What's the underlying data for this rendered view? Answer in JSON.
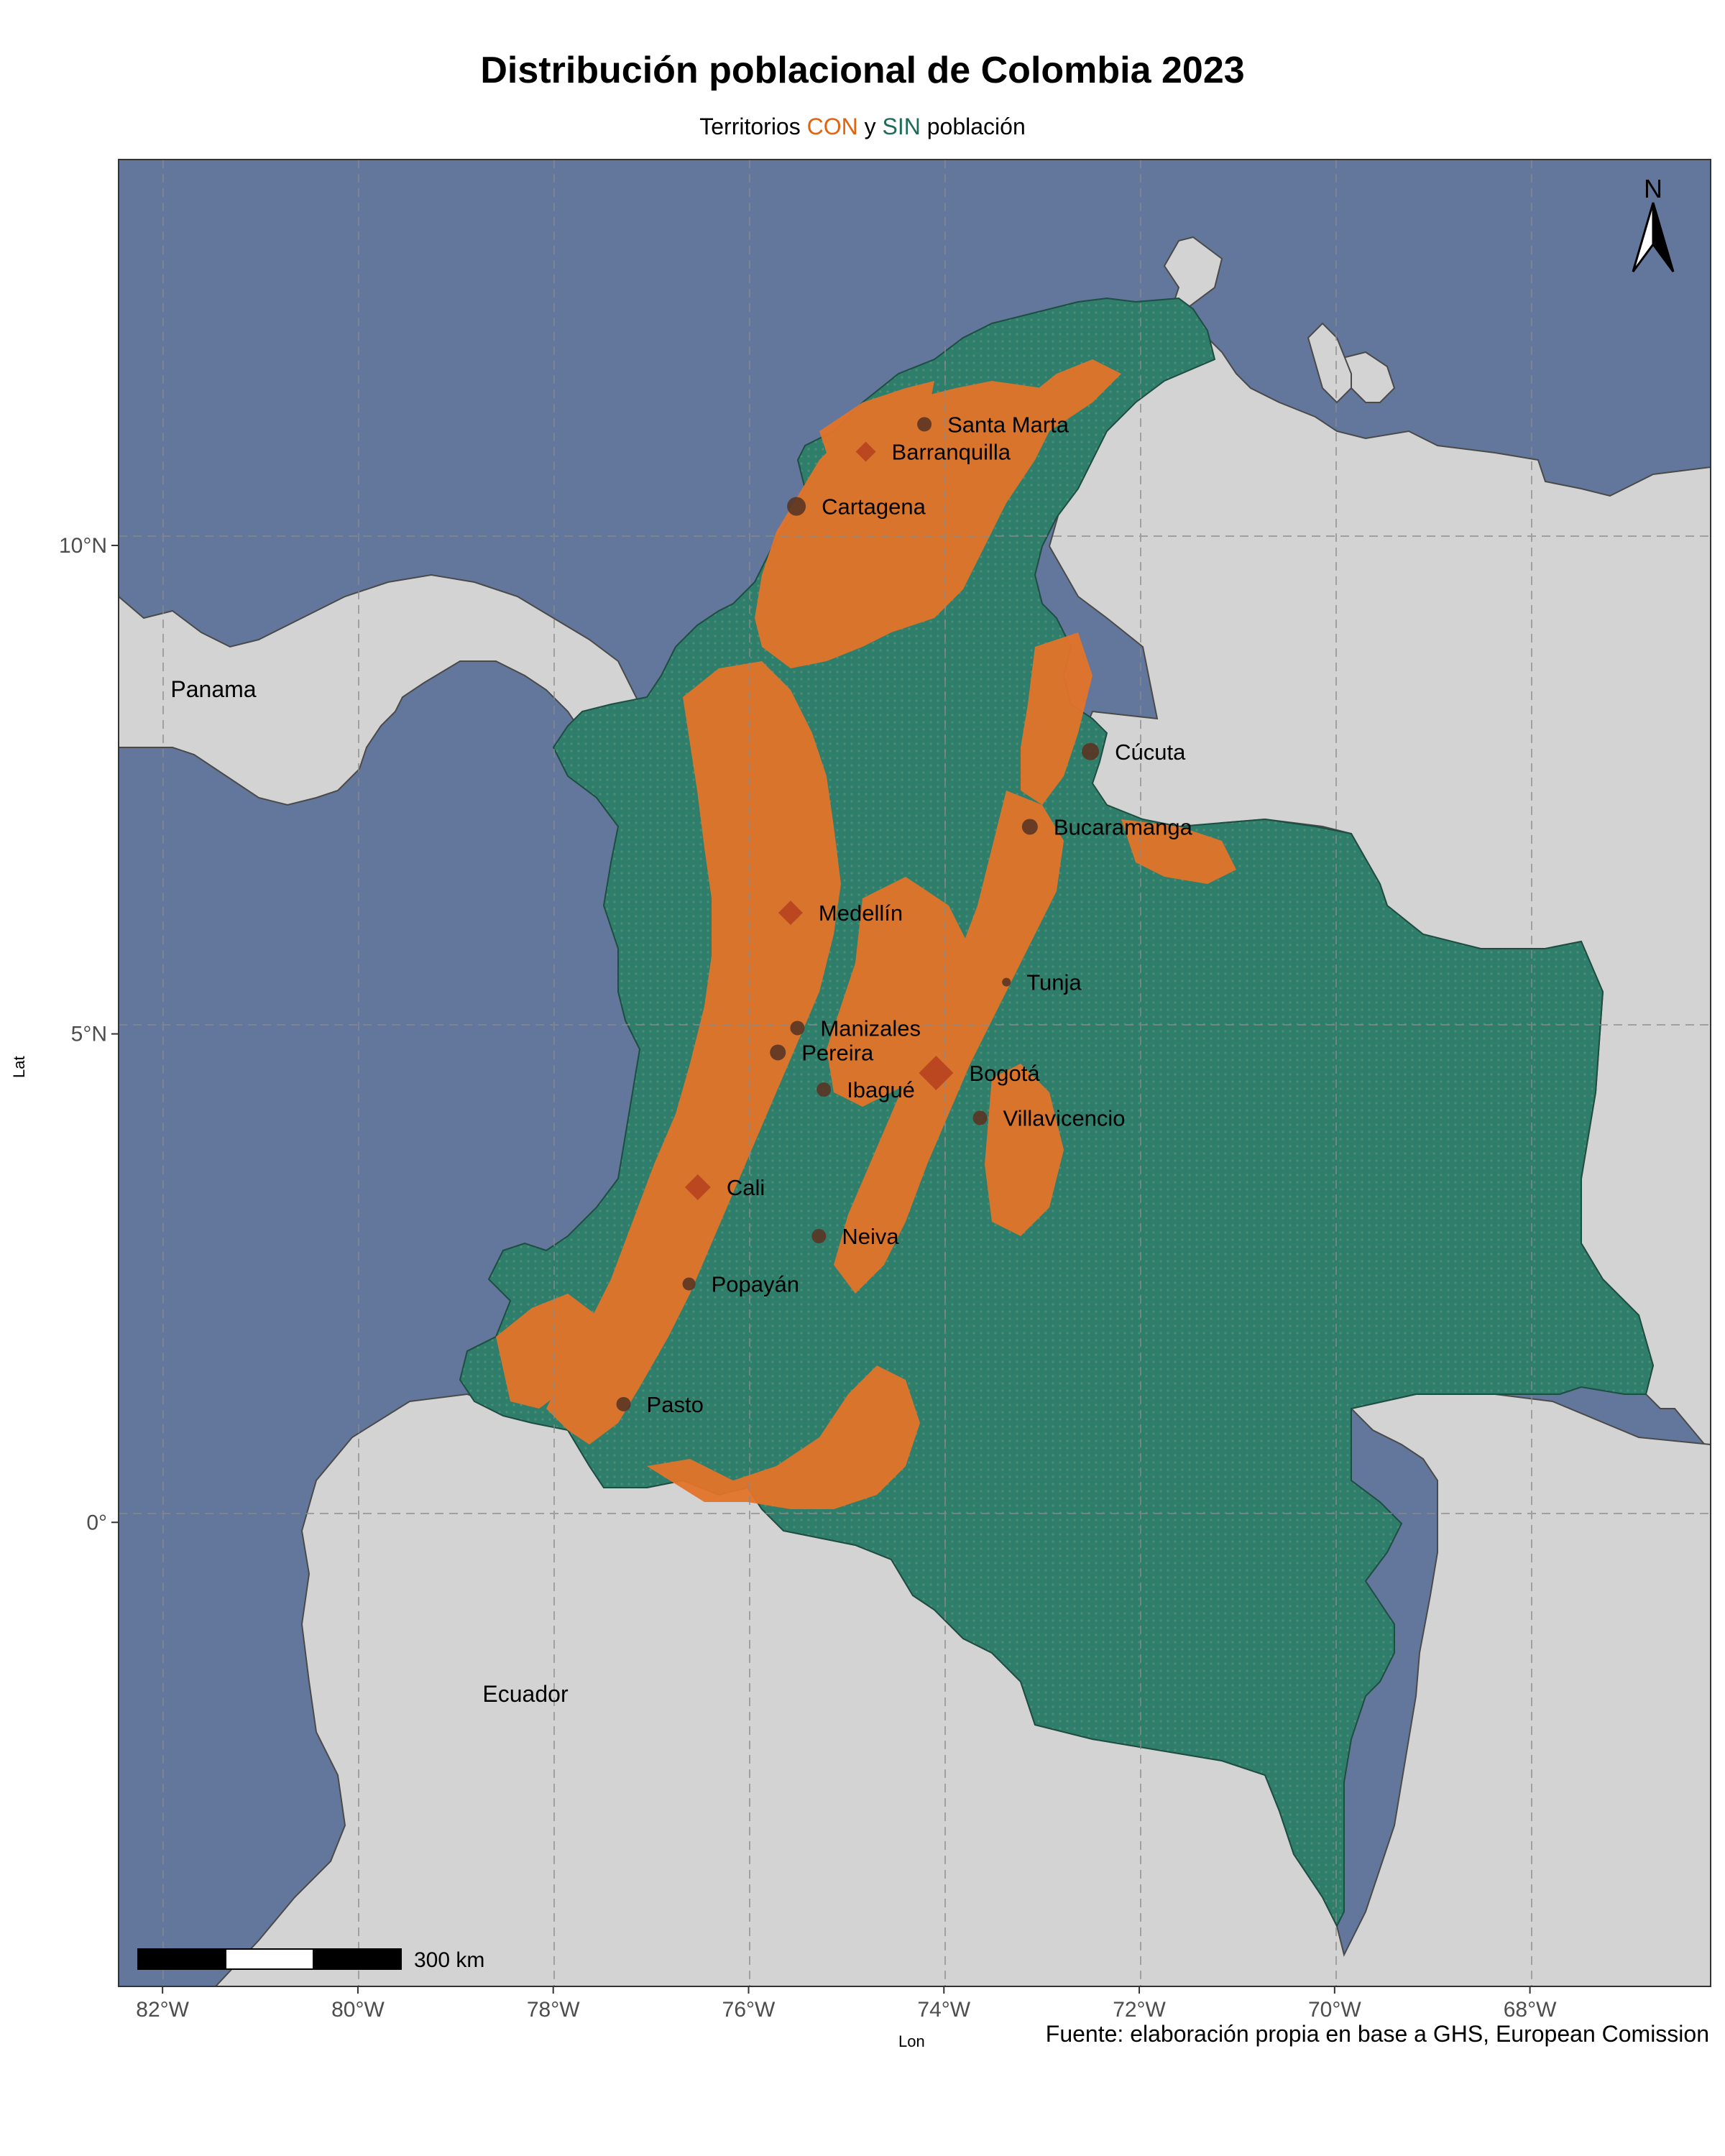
{
  "title": "Distribución poblacional de Colombia 2023",
  "subtitle": {
    "prefix": "Territorios ",
    "con": "CON",
    "middle": " y ",
    "sin": "SIN",
    "suffix": " población"
  },
  "axes": {
    "x_title": "Lon",
    "y_title": "Lat",
    "x_ticks": [
      {
        "lon": -82,
        "label": "82°W"
      },
      {
        "lon": -80,
        "label": "80°W"
      },
      {
        "lon": -78,
        "label": "78°W"
      },
      {
        "lon": -76,
        "label": "76°W"
      },
      {
        "lon": -74,
        "label": "74°W"
      },
      {
        "lon": -72,
        "label": "72°W"
      },
      {
        "lon": -70,
        "label": "70°W"
      },
      {
        "lon": -68,
        "label": "68°W"
      }
    ],
    "y_ticks": [
      {
        "lat": 10,
        "label": "10°N"
      },
      {
        "lat": 5,
        "label": "5°N"
      },
      {
        "lat": 0,
        "label": "0°"
      }
    ],
    "lon_range": [
      -82.45,
      -66.15
    ],
    "lat_range": [
      -4.75,
      13.95
    ]
  },
  "countries": [
    {
      "name": "Panama",
      "lon": -81.5,
      "lat": 8.4
    },
    {
      "name": "Ecuador",
      "lon": -78.2,
      "lat": -1.85
    }
  ],
  "cities": [
    {
      "name": "Santa Marta",
      "lon": -74.2,
      "lat": 11.24,
      "marker": "dot",
      "size": 10
    },
    {
      "name": "Barranquilla",
      "lon": -74.8,
      "lat": 10.96,
      "marker": "diamond",
      "size": 14
    },
    {
      "name": "Cartagena",
      "lon": -75.51,
      "lat": 10.4,
      "marker": "dot",
      "size": 13
    },
    {
      "name": "Cúcuta",
      "lon": -72.5,
      "lat": 7.89,
      "marker": "dot",
      "size": 12
    },
    {
      "name": "Bucaramanga",
      "lon": -73.12,
      "lat": 7.12,
      "marker": "dot",
      "size": 11
    },
    {
      "name": "Medellín",
      "lon": -75.57,
      "lat": 6.24,
      "marker": "diamond",
      "size": 17
    },
    {
      "name": "Tunja",
      "lon": -73.36,
      "lat": 5.53,
      "marker": "dot",
      "size": 6
    },
    {
      "name": "Manizales",
      "lon": -75.5,
      "lat": 5.06,
      "marker": "dot",
      "size": 10
    },
    {
      "name": "Pereira",
      "lon": -75.7,
      "lat": 4.81,
      "marker": "dot",
      "size": 11
    },
    {
      "name": "Bogotá",
      "lon": -74.08,
      "lat": 4.6,
      "marker": "diamond",
      "size": 24
    },
    {
      "name": "Ibagué",
      "lon": -75.23,
      "lat": 4.43,
      "marker": "dot",
      "size": 10
    },
    {
      "name": "Villavicencio",
      "lon": -73.63,
      "lat": 4.14,
      "marker": "dot",
      "size": 10
    },
    {
      "name": "Cali",
      "lon": -76.52,
      "lat": 3.43,
      "marker": "diamond",
      "size": 18
    },
    {
      "name": "Neiva",
      "lon": -75.28,
      "lat": 2.93,
      "marker": "dot",
      "size": 10
    },
    {
      "name": "Popayán",
      "lon": -76.61,
      "lat": 2.44,
      "marker": "dot",
      "size": 9
    },
    {
      "name": "Pasto",
      "lon": -77.28,
      "lat": 1.21,
      "marker": "dot",
      "size": 10
    }
  ],
  "scale_bar": {
    "label": "300 km"
  },
  "north_arrow": {
    "label": "N"
  },
  "caption": "Fuente: elaboración propia en base a GHS, European Comission",
  "colors": {
    "ocean": "#62779b",
    "land": "#d3d3d3",
    "colombia_sin": "#2f7d6b",
    "colombia_con": "#e3742a",
    "grid": "#8a8a8a",
    "city": "#5a3524",
    "city_big": "#b4401f",
    "subtitle_con": "#e06510",
    "subtitle_sin": "#1f6b57"
  },
  "icons": {
    "north_arrow": "north-arrow-icon",
    "scale_bar": "scale-bar-icon"
  }
}
